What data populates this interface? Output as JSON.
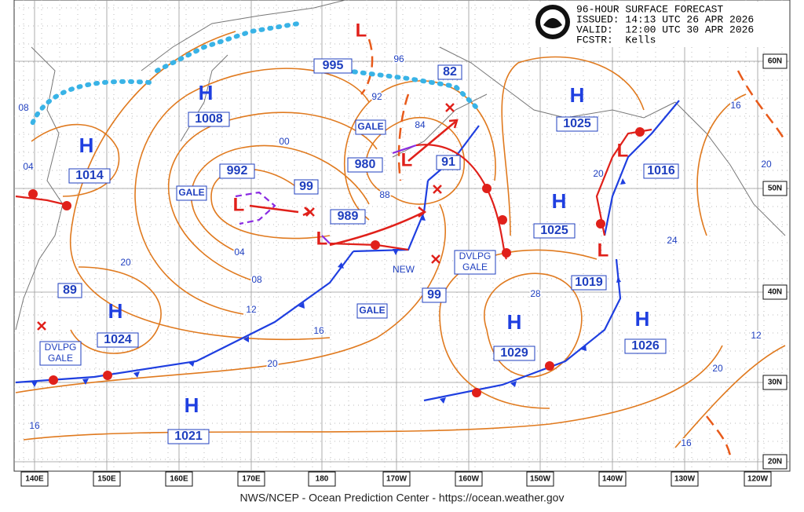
{
  "header": {
    "title": "96-HOUR SURFACE FORECAST",
    "issued": "ISSUED: 14:13 UTC 26 APR 2026",
    "valid": "VALID:  12:00 UTC 30 APR 2026",
    "forecaster": "FCSTR:  Kells"
  },
  "longitudes": [
    "140E",
    "150E",
    "160E",
    "170E",
    "180",
    "170W",
    "160W",
    "150W",
    "140W",
    "130W",
    "120W"
  ],
  "latitudes": [
    "60N",
    "50N",
    "40N",
    "30N",
    "20N"
  ],
  "highs": [
    {
      "label": "H",
      "pressure": "1008"
    },
    {
      "label": "H",
      "pressure": "1014"
    },
    {
      "label": "H",
      "pressure": "1025"
    },
    {
      "label": "H",
      "pressure": "1025"
    },
    {
      "label": "H",
      "pressure": "1024"
    },
    {
      "label": "H",
      "pressure": "1029"
    },
    {
      "label": "H",
      "pressure": "1026"
    },
    {
      "label": "H",
      "pressure": "1021"
    }
  ],
  "lows": [
    {
      "label": "L",
      "pressure": "992"
    },
    {
      "label": "L",
      "pressure": "989"
    },
    {
      "label": "L",
      "pressure": "980"
    },
    {
      "label": "L",
      "pressure": "82"
    },
    {
      "label": "L",
      "pressure": "1016"
    },
    {
      "label": "L",
      "pressure": "1019"
    }
  ],
  "isobar_labels": [
    "08",
    "04",
    "00",
    "96",
    "92",
    "84",
    "88",
    "04",
    "08",
    "12",
    "16",
    "20",
    "20",
    "28",
    "24",
    "20",
    "16",
    "20",
    "12",
    "20",
    "16",
    "16",
    "91"
  ],
  "boxed_labels": [
    "995",
    "99",
    "99",
    "89"
  ],
  "warnings": [
    "GALE",
    "GALE",
    "GALE",
    "NEW",
    [
      "DVLPG",
      "GALE"
    ],
    [
      "DVLPG",
      "GALE"
    ]
  ],
  "footer": "NWS/NCEP - Ocean Prediction Center - https://ocean.weather.gov"
}
